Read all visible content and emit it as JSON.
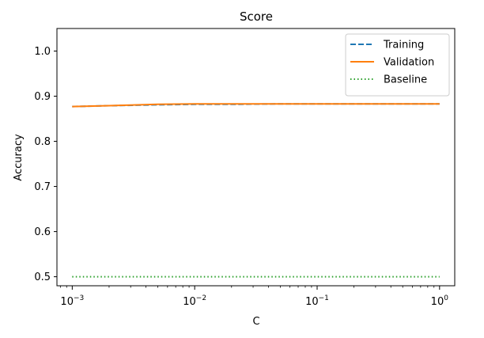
{
  "chart_data": {
    "type": "line",
    "title": "Score",
    "xlabel": "C",
    "ylabel": "Accuracy",
    "xscale": "log",
    "xlim": [
      0.00075,
      1.33
    ],
    "ylim": [
      0.48,
      1.05
    ],
    "yticks": [
      0.5,
      0.6,
      0.7,
      0.8,
      0.9,
      1.0
    ],
    "ytick_labels": [
      "0.5",
      "0.6",
      "0.7",
      "0.8",
      "0.9",
      "1.0"
    ],
    "xticks": [
      {
        "value": 0.001,
        "base": "10",
        "exp": "−3"
      },
      {
        "value": 0.01,
        "base": "10",
        "exp": "−2"
      },
      {
        "value": 0.1,
        "base": "10",
        "exp": "−1"
      },
      {
        "value": 1,
        "base": "10",
        "exp": "0"
      }
    ],
    "legend_position": "top-right",
    "series": [
      {
        "name": "Training",
        "color": "#1f77b4",
        "style": "dashed",
        "x": [
          0.001,
          0.002,
          0.005,
          0.01,
          0.02,
          0.05,
          0.1,
          0.2,
          0.5,
          1
        ],
        "y": [
          0.877,
          0.879,
          0.881,
          0.882,
          0.882,
          0.883,
          0.883,
          0.883,
          0.883,
          0.883
        ]
      },
      {
        "name": "Validation",
        "color": "#ff7f0e",
        "style": "solid",
        "x": [
          0.001,
          0.002,
          0.005,
          0.01,
          0.02,
          0.05,
          0.1,
          0.2,
          0.5,
          1
        ],
        "y": [
          0.877,
          0.879,
          0.882,
          0.883,
          0.883,
          0.883,
          0.883,
          0.883,
          0.883,
          0.883
        ]
      },
      {
        "name": "Baseline",
        "color": "#2ca02c",
        "style": "dotted",
        "x": [
          0.001,
          1
        ],
        "y": [
          0.5,
          0.5
        ]
      }
    ]
  }
}
